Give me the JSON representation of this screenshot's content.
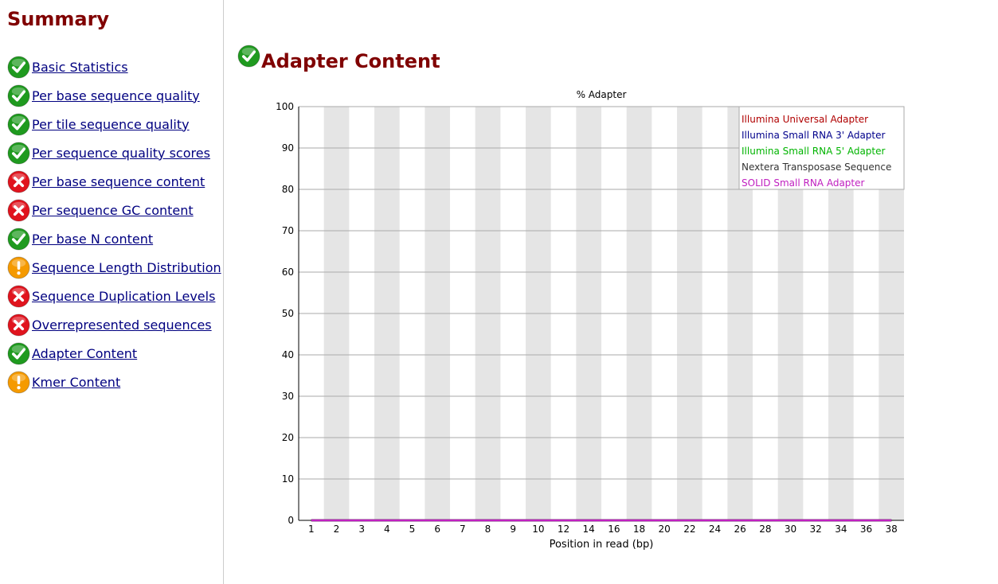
{
  "sidebar": {
    "title": "Summary",
    "items": [
      {
        "label": "Basic Statistics",
        "status": "pass",
        "icon": "check-circle-icon"
      },
      {
        "label": "Per base sequence quality",
        "status": "pass",
        "icon": "check-circle-icon"
      },
      {
        "label": "Per tile sequence quality",
        "status": "pass",
        "icon": "check-circle-icon"
      },
      {
        "label": "Per sequence quality scores",
        "status": "pass",
        "icon": "check-circle-icon"
      },
      {
        "label": "Per base sequence content",
        "status": "fail",
        "icon": "x-circle-icon"
      },
      {
        "label": "Per sequence GC content",
        "status": "fail",
        "icon": "x-circle-icon"
      },
      {
        "label": "Per base N content",
        "status": "pass",
        "icon": "check-circle-icon"
      },
      {
        "label": "Sequence Length Distribution",
        "status": "warn",
        "icon": "warning-circle-icon"
      },
      {
        "label": "Sequence Duplication Levels",
        "status": "fail",
        "icon": "x-circle-icon"
      },
      {
        "label": "Overrepresented sequences",
        "status": "fail",
        "icon": "x-circle-icon"
      },
      {
        "label": "Adapter Content",
        "status": "pass",
        "icon": "check-circle-icon"
      },
      {
        "label": "Kmer Content",
        "status": "warn",
        "icon": "warning-circle-icon"
      }
    ]
  },
  "main": {
    "title": "Adapter Content",
    "status": "pass",
    "icon": "check-circle-icon"
  },
  "colors": {
    "heading": "#800000",
    "link": "#000080",
    "pass": "#1f9a1f",
    "fail": "#e0141e",
    "warn": "#f59a00"
  },
  "chart_data": {
    "type": "line",
    "title": "% Adapter",
    "xlabel": "Position in read (bp)",
    "ylabel": "",
    "ylim": [
      0,
      100
    ],
    "yticks": [
      "0",
      "10",
      "20",
      "30",
      "40",
      "50",
      "60",
      "70",
      "80",
      "90",
      "100"
    ],
    "x_tick_labels": [
      "1",
      "2",
      "3",
      "4",
      "5",
      "6",
      "7",
      "8",
      "9",
      "10",
      "12",
      "14",
      "16",
      "18",
      "20",
      "22",
      "24",
      "26",
      "28",
      "30",
      "32",
      "34",
      "36",
      "38"
    ],
    "x": [
      1,
      2,
      3,
      4,
      5,
      6,
      7,
      8,
      9,
      10,
      12,
      14,
      16,
      18,
      20,
      22,
      24,
      26,
      28,
      30,
      32,
      34,
      36,
      38
    ],
    "grid": true,
    "legend_position": "top-right",
    "series": [
      {
        "name": "Illumina Universal Adapter",
        "color": "#b00000",
        "values": [
          0,
          0,
          0,
          0,
          0,
          0,
          0,
          0,
          0,
          0,
          0,
          0,
          0,
          0,
          0,
          0,
          0,
          0,
          0,
          0,
          0,
          0,
          0,
          0
        ]
      },
      {
        "name": "Illumina Small RNA 3' Adapter",
        "color": "#00008b",
        "values": [
          0,
          0,
          0,
          0,
          0,
          0,
          0,
          0,
          0,
          0,
          0,
          0,
          0,
          0,
          0,
          0,
          0,
          0,
          0,
          0,
          0,
          0,
          0,
          0
        ]
      },
      {
        "name": "Illumina Small RNA 5' Adapter",
        "color": "#00b400",
        "values": [
          0,
          0,
          0,
          0,
          0,
          0,
          0,
          0,
          0,
          0,
          0,
          0,
          0,
          0,
          0,
          0,
          0,
          0,
          0,
          0,
          0,
          0,
          0,
          0
        ]
      },
      {
        "name": "Nextera Transposase Sequence",
        "color": "#333333",
        "values": [
          0,
          0,
          0,
          0,
          0,
          0,
          0,
          0,
          0,
          0,
          0,
          0,
          0,
          0,
          0,
          0,
          0,
          0,
          0,
          0,
          0,
          0,
          0,
          0
        ]
      },
      {
        "name": "SOLID Small RNA Adapter",
        "color": "#c020c0",
        "values": [
          0,
          0,
          0,
          0,
          0,
          0,
          0,
          0,
          0,
          0,
          0,
          0,
          0,
          0,
          0,
          0,
          0,
          0,
          0,
          0,
          0,
          0,
          0,
          0
        ]
      }
    ]
  }
}
